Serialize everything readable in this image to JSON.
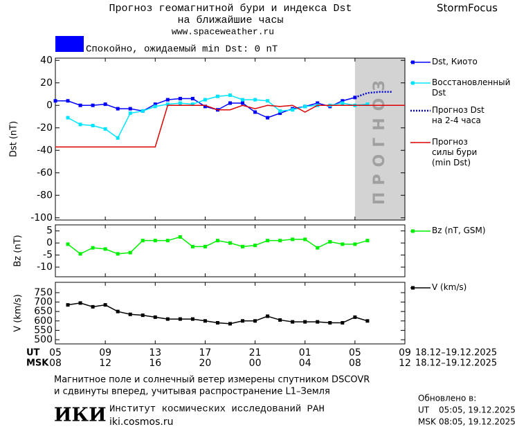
{
  "header": {
    "title_line1": "Прогноз геомагнитной бури и индекса Dst",
    "title_line2": "на ближайшие часы",
    "site": "www.spaceweather.ru",
    "brand": "StormFocus"
  },
  "status": {
    "color": "#0000ff",
    "text": "Спокойно, ожидаемый min Dst: 0 nT"
  },
  "chart_data": [
    {
      "type": "line",
      "y_label": "Dst (nT)",
      "x": [
        0,
        1,
        2,
        3,
        4,
        5,
        6,
        7,
        8,
        9,
        10,
        11,
        12,
        13,
        14,
        15,
        16,
        17,
        18,
        19,
        20,
        21,
        22,
        23,
        24,
        25,
        26,
        27,
        28
      ],
      "xlim": [
        0,
        28
      ],
      "ylim": [
        -102,
        42
      ],
      "yticks": [
        40,
        20,
        0,
        -20,
        -40,
        -60,
        -80,
        -100
      ],
      "forecast_region": {
        "xlim": [
          24,
          28
        ],
        "label": "ПРОГНОЗ",
        "color": "#d3d3d3"
      },
      "series": [
        {
          "name": "Dst, Киото",
          "color": "#0000ff",
          "marker": "square",
          "line_style": "solid",
          "values": [
            4,
            4,
            0,
            0,
            1,
            -3,
            -3,
            -5,
            1,
            5,
            6,
            6,
            -1,
            -4,
            2,
            2,
            -6,
            -11,
            -7,
            -3,
            -1,
            2,
            -1,
            4,
            7,
            null,
            null,
            null,
            null
          ]
        },
        {
          "name": "Восстановленный\nDst",
          "color": "#00e5ff",
          "marker": "square",
          "line_style": "solid",
          "values": [
            null,
            -11,
            -17,
            -18,
            -21,
            -29,
            -7,
            -5,
            -1,
            1,
            2,
            1,
            5,
            8,
            9,
            5,
            5,
            4,
            -5,
            -4,
            -1,
            0,
            0,
            2,
            0,
            1,
            null,
            null,
            null
          ]
        },
        {
          "name": "Прогноз Dst\nна 2-4 часа",
          "color": "#0000cc",
          "marker": "none",
          "line_style": "dotted",
          "values": [
            null,
            null,
            null,
            null,
            null,
            null,
            null,
            null,
            null,
            null,
            null,
            null,
            null,
            null,
            null,
            null,
            null,
            null,
            null,
            null,
            null,
            null,
            null,
            null,
            7,
            11,
            12,
            12,
            null
          ]
        },
        {
          "name": "Прогноз\nсилы бури\n(min Dst)",
          "color": "#dd0000",
          "marker": "none",
          "line_style": "solid",
          "values": [
            -37,
            -37,
            -37,
            -37,
            -37,
            -37,
            -37,
            -37,
            -37,
            0,
            0,
            0,
            0,
            -4,
            -4,
            0,
            -3,
            0,
            -1,
            0,
            -6,
            0,
            0,
            0,
            0,
            0,
            0,
            0,
            0
          ]
        }
      ]
    },
    {
      "type": "line",
      "y_label": "Bz (nT)",
      "x": [
        0,
        1,
        2,
        3,
        4,
        5,
        6,
        7,
        8,
        9,
        10,
        11,
        12,
        13,
        14,
        15,
        16,
        17,
        18,
        19,
        20,
        21,
        22,
        23,
        24,
        25,
        26,
        27,
        28
      ],
      "xlim": [
        0,
        28
      ],
      "ylim": [
        -14,
        7.5
      ],
      "yticks": [
        5,
        0,
        -5,
        -10
      ],
      "series": [
        {
          "name": "Bz (nT, GSM)",
          "color": "#00ee00",
          "marker": "square",
          "line_style": "solid",
          "values": [
            null,
            -0.5,
            -4.5,
            -2,
            -2.5,
            -4.5,
            -4,
            1,
            1,
            1,
            2.5,
            -1.5,
            -1.5,
            1,
            0,
            -1.5,
            -1,
            1,
            1,
            1.5,
            1.5,
            -2,
            0.5,
            -0.5,
            -0.5,
            1,
            null,
            null,
            null
          ]
        }
      ]
    },
    {
      "type": "line",
      "y_label": "V (km/s)",
      "x": [
        0,
        1,
        2,
        3,
        4,
        5,
        6,
        7,
        8,
        9,
        10,
        11,
        12,
        13,
        14,
        15,
        16,
        17,
        18,
        19,
        20,
        21,
        22,
        23,
        24,
        25,
        26,
        27,
        28
      ],
      "xlim": [
        0,
        28
      ],
      "ylim": [
        478,
        805
      ],
      "yticks": [
        750,
        700,
        650,
        600,
        550,
        500
      ],
      "xticks": [
        {
          "value": 0,
          "label": "05"
        },
        {
          "value": 4,
          "label": "09"
        },
        {
          "value": 8,
          "label": "13"
        },
        {
          "value": 12,
          "label": "17"
        },
        {
          "value": 16,
          "label": "21"
        },
        {
          "value": 20,
          "label": "01"
        },
        {
          "value": 24,
          "label": "05"
        },
        {
          "value": 28,
          "label": "09"
        }
      ],
      "x2ticks": [
        "08",
        "12",
        "16",
        "20",
        "00",
        "04",
        "08",
        "12"
      ],
      "x_label": "UT",
      "x2_label": "MSK",
      "x_date_range": "18.12–19.12.2025",
      "x2_date_range": "18.12–19.12.2025",
      "series": [
        {
          "name": "V (km/s)",
          "color": "#000000",
          "marker": "square",
          "line_style": "solid",
          "values": [
            null,
            685,
            695,
            675,
            685,
            650,
            635,
            630,
            620,
            610,
            610,
            610,
            600,
            590,
            585,
            600,
            600,
            625,
            605,
            595,
            595,
            595,
            590,
            590,
            620,
            600,
            null,
            null,
            null
          ]
        }
      ]
    }
  ],
  "footer": {
    "note_line1": "Магнитное поле и солнечный ветер измерены спутником DSCOVR",
    "note_line2": "и сдвинуты вперед, учитывая распространение L1–Земля",
    "logo": "ИКИ",
    "institute": "Институт космических исследований РАН",
    "url": "iki.cosmos.ru",
    "updated": "Обновлено в:",
    "ut_label": "UT",
    "ut_time": "05:05, 19.12.2025",
    "msk_label": "MSK",
    "msk_time": "08:05, 19.12.2025"
  }
}
